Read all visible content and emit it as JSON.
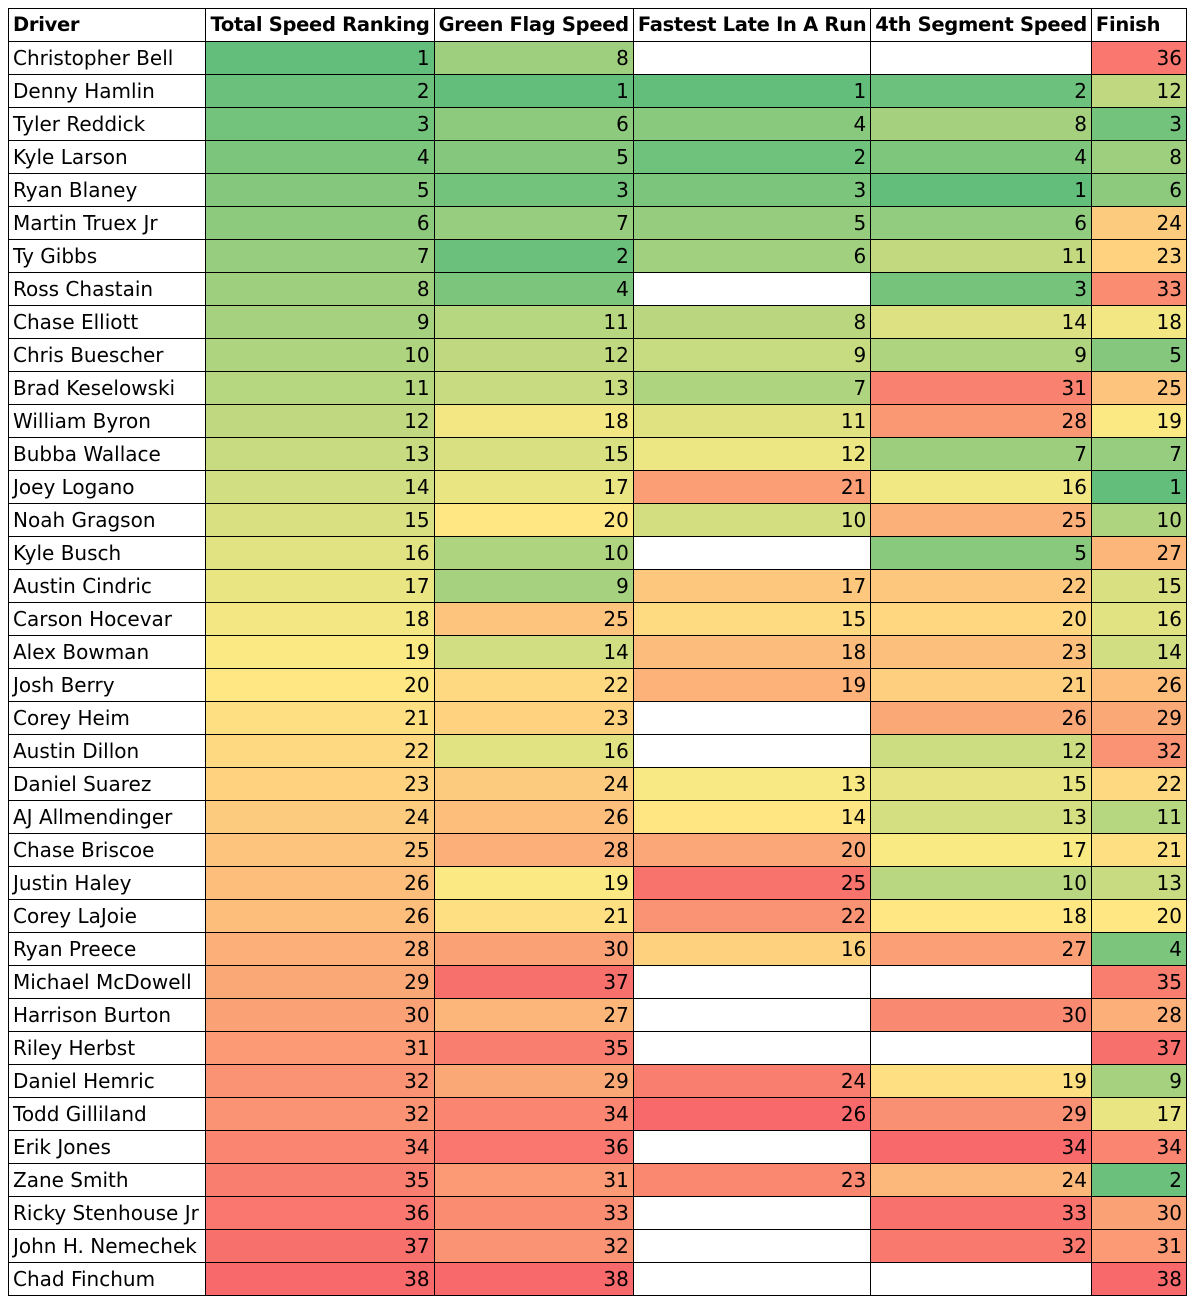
{
  "headers": [
    "Driver",
    "Total Speed Ranking",
    "Green Flag Speed",
    "Fastest Late In A Run",
    "4th Segment Speed",
    "Finish"
  ],
  "color_scale": {
    "low": "#63BE7B",
    "mid": "#FFEB84",
    "high": "#F8696B",
    "empty": "#FFFFFF"
  },
  "rows": [
    [
      "Christopher Bell",
      1,
      8,
      null,
      null,
      36
    ],
    [
      "Denny Hamlin",
      2,
      1,
      1,
      2,
      12
    ],
    [
      "Tyler Reddick",
      3,
      6,
      4,
      8,
      3
    ],
    [
      "Kyle Larson",
      4,
      5,
      2,
      4,
      8
    ],
    [
      "Ryan Blaney",
      5,
      3,
      3,
      1,
      6
    ],
    [
      "Martin Truex Jr",
      6,
      7,
      5,
      6,
      24
    ],
    [
      "Ty Gibbs",
      7,
      2,
      6,
      11,
      23
    ],
    [
      "Ross Chastain",
      8,
      4,
      null,
      3,
      33
    ],
    [
      "Chase Elliott",
      9,
      11,
      8,
      14,
      18
    ],
    [
      "Chris Buescher",
      10,
      12,
      9,
      9,
      5
    ],
    [
      "Brad Keselowski",
      11,
      13,
      7,
      31,
      25
    ],
    [
      "William Byron",
      12,
      18,
      11,
      28,
      19
    ],
    [
      "Bubba Wallace",
      13,
      15,
      12,
      7,
      7
    ],
    [
      "Joey Logano",
      14,
      17,
      21,
      16,
      1
    ],
    [
      "Noah Gragson",
      15,
      20,
      10,
      25,
      10
    ],
    [
      "Kyle Busch",
      16,
      10,
      null,
      5,
      27
    ],
    [
      "Austin Cindric",
      17,
      9,
      17,
      22,
      15
    ],
    [
      "Carson Hocevar",
      18,
      25,
      15,
      20,
      16
    ],
    [
      "Alex Bowman",
      19,
      14,
      18,
      23,
      14
    ],
    [
      "Josh Berry",
      20,
      22,
      19,
      21,
      26
    ],
    [
      "Corey Heim",
      21,
      23,
      null,
      26,
      29
    ],
    [
      "Austin Dillon",
      22,
      16,
      null,
      12,
      32
    ],
    [
      "Daniel Suarez",
      23,
      24,
      13,
      15,
      22
    ],
    [
      "AJ Allmendinger",
      24,
      26,
      14,
      13,
      11
    ],
    [
      "Chase Briscoe",
      25,
      28,
      20,
      17,
      21
    ],
    [
      "Justin Haley",
      26,
      19,
      25,
      10,
      13
    ],
    [
      "Corey LaJoie",
      26,
      21,
      22,
      18,
      20
    ],
    [
      "Ryan Preece",
      28,
      30,
      16,
      27,
      4
    ],
    [
      "Michael McDowell",
      29,
      37,
      null,
      null,
      35
    ],
    [
      "Harrison Burton",
      30,
      27,
      null,
      30,
      28
    ],
    [
      "Riley Herbst",
      31,
      35,
      null,
      null,
      37
    ],
    [
      "Daniel Hemric",
      32,
      29,
      24,
      19,
      9
    ],
    [
      "Todd Gilliland",
      32,
      34,
      26,
      29,
      17
    ],
    [
      "Erik Jones",
      34,
      36,
      null,
      34,
      34
    ],
    [
      "Zane Smith",
      35,
      31,
      23,
      24,
      2
    ],
    [
      "Ricky Stenhouse Jr",
      36,
      33,
      null,
      33,
      30
    ],
    [
      "John H. Nemechek",
      37,
      32,
      null,
      32,
      31
    ],
    [
      "Chad Finchum",
      38,
      38,
      null,
      null,
      38
    ]
  ]
}
